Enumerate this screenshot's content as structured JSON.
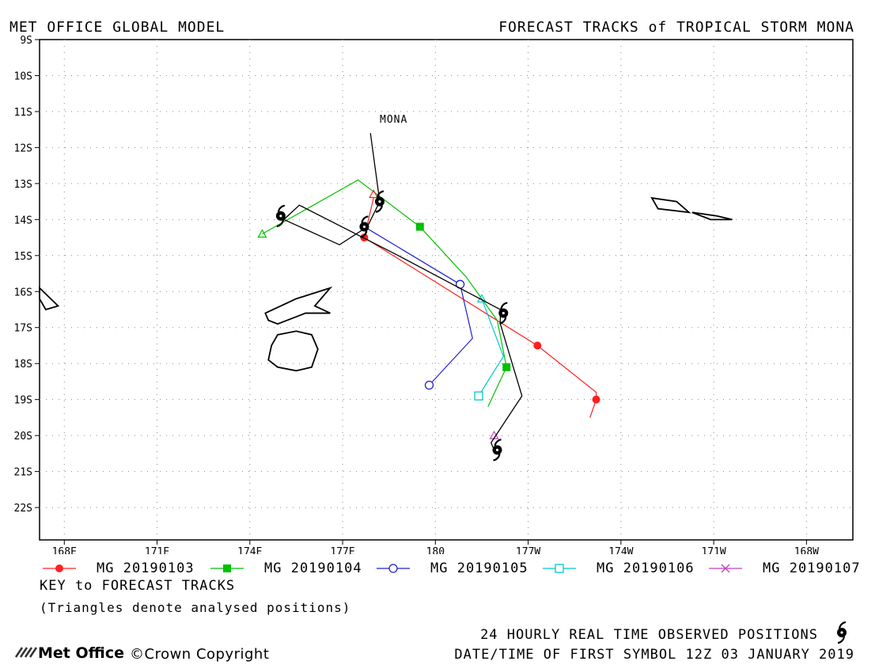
{
  "header": {
    "left_title": "MET OFFICE GLOBAL MODEL",
    "right_title": "FORECAST TRACKS of TROPICAL STORM MONA"
  },
  "map": {
    "storm_label": "MONA",
    "lon_labels": [
      "168E",
      "171E",
      "174E",
      "177E",
      "180",
      "177W",
      "174W",
      "171W",
      "168W"
    ],
    "lat_labels": [
      "9S",
      "10S",
      "11S",
      "12S",
      "13S",
      "14S",
      "15S",
      "16S",
      "17S",
      "18S",
      "19S",
      "20S",
      "21S",
      "22S"
    ],
    "extent": {
      "lon_min": 167.2,
      "lon_max": 193.5,
      "lat_min": -22.9,
      "lat_max": -9.0
    },
    "grid": true,
    "observed_track": [
      [
        177.9,
        -11.6
      ],
      [
        178.2,
        -13.5
      ],
      [
        177.8,
        -14.2
      ],
      [
        176.9,
        -14.7
      ],
      [
        175.1,
        -14.0
      ],
      [
        175.6,
        -13.6
      ],
      [
        178.8,
        -15.0
      ],
      [
        181.0,
        -16.0
      ],
      [
        182.1,
        -16.5
      ],
      [
        182.1,
        -16.9
      ],
      [
        182.8,
        -18.9
      ],
      [
        181.8,
        -20.2
      ],
      [
        181.9,
        -20.4
      ]
    ],
    "observed_symbols": [
      [
        178.2,
        -13.5
      ],
      [
        175.0,
        -13.9
      ],
      [
        177.7,
        -14.2
      ],
      [
        182.2,
        -16.6
      ],
      [
        182.0,
        -20.4
      ]
    ],
    "forecast_tracks": [
      {
        "name": "MG 20190103",
        "color": "#ff2020",
        "marker": "filled-circle",
        "points": [
          [
            178.0,
            -13.4
          ],
          [
            177.7,
            -14.5
          ],
          [
            183.3,
            -17.5
          ],
          [
            185.2,
            -18.8
          ],
          [
            185.2,
            -19.0
          ],
          [
            185.0,
            -19.5
          ]
        ],
        "marked": [
          [
            177.7,
            -14.5
          ],
          [
            183.3,
            -17.5
          ],
          [
            185.2,
            -19.0
          ]
        ]
      },
      {
        "name": "MG 20190104",
        "color": "#00c000",
        "marker": "filled-square",
        "points": [
          [
            174.4,
            -14.4
          ],
          [
            177.5,
            -12.9
          ],
          [
            179.5,
            -14.2
          ],
          [
            181.0,
            -15.6
          ],
          [
            182.0,
            -16.8
          ],
          [
            182.3,
            -18.1
          ],
          [
            181.7,
            -19.2
          ]
        ],
        "marked": [
          [
            179.5,
            -14.2
          ],
          [
            182.3,
            -18.1
          ]
        ]
      },
      {
        "name": "MG 20190105",
        "color": "#2020d0",
        "marker": "open-circle",
        "points": [
          [
            177.7,
            -14.2
          ],
          [
            180.8,
            -15.8
          ],
          [
            181.2,
            -17.3
          ],
          [
            179.8,
            -18.6
          ]
        ],
        "marked": [
          [
            177.7,
            -14.2
          ],
          [
            180.8,
            -15.8
          ],
          [
            179.8,
            -18.6
          ]
        ]
      },
      {
        "name": "MG 20190106",
        "color": "#00c8c8",
        "marker": "open-square",
        "points": [
          [
            181.5,
            -16.2
          ],
          [
            182.2,
            -17.8
          ],
          [
            181.4,
            -18.9
          ]
        ],
        "marked": [
          [
            181.4,
            -18.9
          ]
        ]
      },
      {
        "name": "MG 20190107",
        "color": "#c040c0",
        "marker": "cross",
        "points": [],
        "marked": []
      }
    ],
    "analysed_triangles": [
      {
        "color": "#ff2020",
        "pos": [
          178.0,
          -13.3
        ]
      },
      {
        "color": "#00c000",
        "pos": [
          174.4,
          -14.4
        ]
      },
      {
        "color": "#00c8c8",
        "pos": [
          181.5,
          -16.2
        ]
      },
      {
        "color": "#c040c0",
        "pos": [
          181.9,
          -20.0
        ]
      }
    ],
    "islands": [
      [
        [
          174.5,
          -16.6
        ],
        [
          175.5,
          -16.2
        ],
        [
          176.6,
          -15.9
        ],
        [
          176.1,
          -16.4
        ],
        [
          176.6,
          -16.6
        ],
        [
          175.8,
          -16.6
        ],
        [
          174.9,
          -16.9
        ],
        [
          174.6,
          -16.8
        ]
      ],
      [
        [
          174.9,
          -17.2
        ],
        [
          175.5,
          -17.1
        ],
        [
          176.0,
          -17.2
        ],
        [
          176.2,
          -17.6
        ],
        [
          176.0,
          -18.1
        ],
        [
          175.5,
          -18.2
        ],
        [
          174.9,
          -18.1
        ],
        [
          174.6,
          -17.9
        ],
        [
          174.7,
          -17.5
        ]
      ],
      [
        [
          187.0,
          -13.4
        ],
        [
          187.8,
          -13.5
        ],
        [
          188.2,
          -13.8
        ],
        [
          187.2,
          -13.7
        ]
      ],
      [
        [
          188.3,
          -13.8
        ],
        [
          189.1,
          -13.9
        ],
        [
          189.6,
          -14.0
        ],
        [
          188.9,
          -14.0
        ]
      ],
      [
        [
          167.2,
          -15.9
        ],
        [
          167.8,
          -16.4
        ],
        [
          167.4,
          -16.5
        ],
        [
          167.2,
          -16.2
        ]
      ]
    ]
  },
  "legend": {
    "entries": [
      "MG 20190103",
      "MG 20190104",
      "MG 20190105",
      "MG 20190106",
      "MG 20190107"
    ],
    "key_title": "KEY to FORECAST TRACKS",
    "key_note": "(Triangles denote analysed positions)"
  },
  "footer": {
    "observed_label": "24 HOURLY REAL TIME OBSERVED POSITIONS",
    "datetime_label": "DATE/TIME OF FIRST SYMBOL 12Z 03 JANUARY 2019",
    "brand": "Met Office",
    "copyright": "©Crown Copyright"
  }
}
